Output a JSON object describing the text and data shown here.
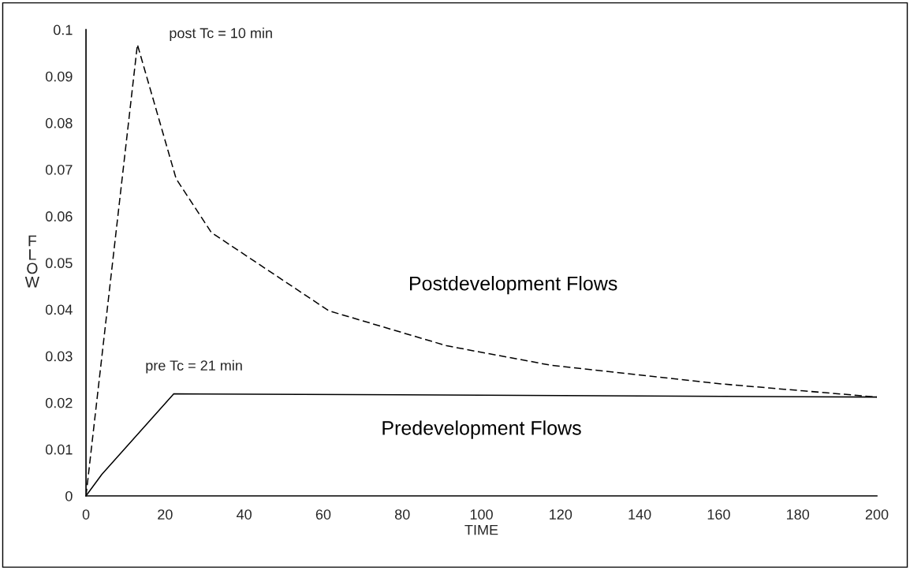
{
  "chart_data": {
    "type": "line",
    "xlabel": "TIME",
    "ylabel": "FLOW",
    "xlim": [
      0,
      200
    ],
    "xticks": [
      0,
      20,
      40,
      60,
      80,
      100,
      120,
      140,
      160,
      180,
      200
    ],
    "ylim": [
      0,
      0.1
    ],
    "yticks": [
      0,
      0.01,
      0.02,
      0.03,
      0.04,
      0.05,
      0.06,
      0.07,
      0.08,
      0.09,
      0.1
    ],
    "grid": false,
    "legend": false,
    "marker": "none",
    "series": [
      {
        "name": "Postdevelopment Flows",
        "color": "#000000",
        "line_style": "dashed",
        "x": [
          0,
          13,
          22.8,
          31.7,
          61.4,
          91.2,
          117.7,
          160.9,
          200
        ],
        "values": [
          0,
          0.0968,
          0.068,
          0.0565,
          0.0397,
          0.0322,
          0.028,
          0.024,
          0.0212
        ]
      },
      {
        "name": "Predevelopment Flows",
        "color": "#000000",
        "line_style": "solid",
        "x": [
          0,
          4,
          22.2,
          200
        ],
        "values": [
          0,
          0.0046,
          0.0219,
          0.0212
        ]
      }
    ],
    "annotations": [
      "post Tc = 10 min",
      "pre Tc = 21 min"
    ]
  }
}
